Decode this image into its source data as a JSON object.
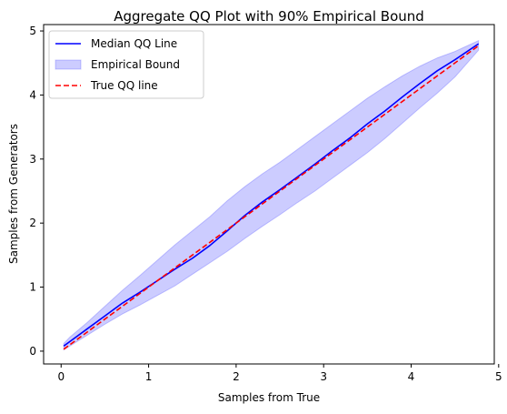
{
  "chart_data": {
    "type": "line",
    "title": "Aggregate QQ Plot with 90% Empirical Bound",
    "xlabel": "Samples from True",
    "ylabel": "Samples from Generators",
    "xlim": [
      -0.2,
      4.95
    ],
    "ylim": [
      -0.2,
      5.1
    ],
    "xticks": [
      0,
      1,
      2,
      3,
      4,
      5
    ],
    "yticks": [
      0,
      1,
      2,
      3,
      4,
      5
    ],
    "grid": false,
    "legend_position": "top-left",
    "legend": [
      {
        "label": "Median QQ Line",
        "kind": "line",
        "color": "#0000ff",
        "dash": "solid"
      },
      {
        "label": "Empirical Bound",
        "kind": "area",
        "color": "#0000ff"
      },
      {
        "label": "True QQ line",
        "kind": "line",
        "color": "#ff0000",
        "dash": "dashed"
      }
    ],
    "series": [
      {
        "name": "Median QQ Line",
        "kind": "line",
        "color": "#0000ff",
        "x": [
          0.03,
          0.1,
          0.3,
          0.5,
          0.7,
          0.9,
          1.1,
          1.3,
          1.5,
          1.7,
          1.9,
          2.1,
          2.3,
          2.5,
          2.7,
          2.9,
          3.1,
          3.3,
          3.5,
          3.7,
          3.9,
          4.1,
          4.3,
          4.5,
          4.77
        ],
        "y": [
          0.08,
          0.15,
          0.35,
          0.55,
          0.75,
          0.92,
          1.1,
          1.28,
          1.45,
          1.65,
          1.88,
          2.12,
          2.33,
          2.52,
          2.72,
          2.92,
          3.13,
          3.33,
          3.55,
          3.75,
          3.97,
          4.18,
          4.38,
          4.55,
          4.8
        ]
      },
      {
        "name": "Empirical Bound",
        "kind": "area",
        "color": "#0000ff",
        "x": [
          0.03,
          0.1,
          0.3,
          0.5,
          0.7,
          0.9,
          1.1,
          1.3,
          1.5,
          1.7,
          1.9,
          2.1,
          2.3,
          2.5,
          2.7,
          2.9,
          3.1,
          3.3,
          3.5,
          3.7,
          3.9,
          4.1,
          4.3,
          4.5,
          4.77
        ],
        "upper": [
          0.12,
          0.22,
          0.45,
          0.7,
          0.95,
          1.18,
          1.42,
          1.66,
          1.88,
          2.1,
          2.35,
          2.57,
          2.77,
          2.95,
          3.15,
          3.35,
          3.55,
          3.75,
          3.95,
          4.13,
          4.3,
          4.45,
          4.58,
          4.68,
          4.85
        ],
        "lower": [
          0.02,
          0.08,
          0.25,
          0.42,
          0.58,
          0.72,
          0.87,
          1.02,
          1.2,
          1.38,
          1.56,
          1.76,
          1.95,
          2.13,
          2.32,
          2.5,
          2.7,
          2.9,
          3.1,
          3.32,
          3.56,
          3.8,
          4.03,
          4.28,
          4.7
        ]
      },
      {
        "name": "True QQ line",
        "kind": "line",
        "color": "#ff0000",
        "dash": "dashed",
        "x": [
          0.03,
          4.77
        ],
        "y": [
          0.03,
          4.77
        ]
      }
    ]
  }
}
